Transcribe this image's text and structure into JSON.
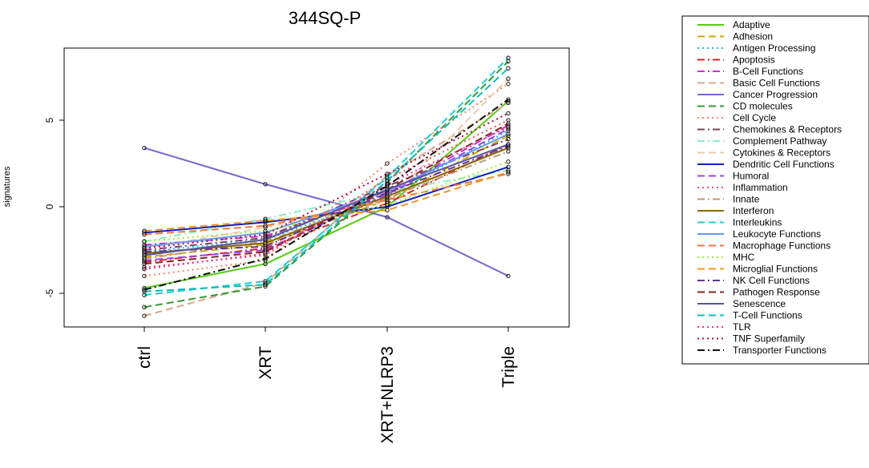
{
  "chart_data": {
    "type": "line",
    "title": "344SQ-P",
    "xlabel": "",
    "ylabel": "signatures",
    "categories": [
      "ctrl",
      "XRT",
      "XRT+NLRP3",
      "Triple"
    ],
    "yticks": [
      "5",
      "0",
      "-5"
    ],
    "ylim": [
      -6.9,
      9.1
    ],
    "grid": false,
    "legend_position": "right",
    "series": [
      {
        "name": "Adaptive",
        "color": "#55cc11",
        "dash": "solid",
        "values": [
          -4.7,
          -3.3,
          0.0,
          6.1
        ]
      },
      {
        "name": "Adhesion",
        "color": "#ccaa00",
        "dash": "dashed",
        "values": [
          -2.9,
          -2.2,
          0.4,
          4.1
        ]
      },
      {
        "name": "Antigen Processing",
        "color": "#22bbdd",
        "dash": "dotted",
        "values": [
          -2.6,
          -1.9,
          0.6,
          4.4
        ]
      },
      {
        "name": "Apoptosis",
        "color": "#dd2222",
        "dash": "dashdot",
        "values": [
          -3.2,
          -2.4,
          0.2,
          3.6
        ]
      },
      {
        "name": "B-Cell Functions",
        "color": "#cc33cc",
        "dash": "dashdot",
        "values": [
          -2.2,
          -1.7,
          0.8,
          4.7
        ]
      },
      {
        "name": "Basic Cell Functions",
        "color": "#d4a98c",
        "dash": "dashed",
        "values": [
          -6.3,
          -4.4,
          1.8,
          6.0
        ]
      },
      {
        "name": "Cancer Progression",
        "color": "#7766cc",
        "dash": "solid",
        "values": [
          3.4,
          1.3,
          -0.6,
          -4.0
        ]
      },
      {
        "name": "CD molecules",
        "color": "#339933",
        "dash": "dashed",
        "values": [
          -5.8,
          -4.6,
          1.4,
          8.4
        ]
      },
      {
        "name": "Cell Cycle",
        "color": "#ee8866",
        "dash": "dotted",
        "values": [
          -4.0,
          -3.1,
          2.5,
          7.1
        ]
      },
      {
        "name": "Chemokines & Receptors",
        "color": "#774466",
        "dash": "dashdot",
        "values": [
          -2.5,
          -1.8,
          1.2,
          3.9
        ]
      },
      {
        "name": "Complement Pathway",
        "color": "#88eebb",
        "dash": "dashdot",
        "values": [
          -2.0,
          -0.7,
          0.9,
          2.1
        ]
      },
      {
        "name": "Cytokines & Receptors",
        "color": "#eeccaa",
        "dash": "dashed",
        "values": [
          -2.4,
          -1.2,
          0.3,
          7.4
        ]
      },
      {
        "name": "Dendritic Cell Functions",
        "color": "#1122bb",
        "dash": "solid",
        "values": [
          -1.5,
          -0.9,
          0.0,
          2.3
        ]
      },
      {
        "name": "Humoral",
        "color": "#9944ee",
        "dash": "dashed",
        "values": [
          -3.1,
          -2.5,
          0.7,
          4.5
        ]
      },
      {
        "name": "Inflammation",
        "color": "#ee5566",
        "dash": "dotted",
        "values": [
          -3.5,
          -2.8,
          1.6,
          5.0
        ]
      },
      {
        "name": "Innate",
        "color": "#bb9977",
        "dash": "dashdot",
        "values": [
          -3.0,
          -2.0,
          0.5,
          3.2
        ]
      },
      {
        "name": "Interferon",
        "color": "#886600",
        "dash": "solid",
        "values": [
          -2.7,
          -2.1,
          0.6,
          3.4
        ]
      },
      {
        "name": "Interleukins",
        "color": "#22cccc",
        "dash": "dashed",
        "values": [
          -5.1,
          -4.3,
          1.7,
          8.6
        ]
      },
      {
        "name": "Leukocyte Functions",
        "color": "#6699ee",
        "dash": "solid",
        "values": [
          -2.3,
          -1.5,
          0.9,
          4.2
        ]
      },
      {
        "name": "Macrophage Functions",
        "color": "#ee7744",
        "dash": "dashed",
        "values": [
          -1.6,
          -1.1,
          0.4,
          1.9
        ]
      },
      {
        "name": "MHC",
        "color": "#99ee33",
        "dash": "dotted",
        "values": [
          -2.0,
          -1.4,
          0.1,
          2.6
        ]
      },
      {
        "name": "Microglial Functions",
        "color": "#ee9922",
        "dash": "dashed",
        "values": [
          -1.4,
          -0.8,
          -0.2,
          2.0
        ]
      },
      {
        "name": "NK Cell Functions",
        "color": "#663399",
        "dash": "dashdot",
        "values": [
          -2.6,
          -2.3,
          0.8,
          3.5
        ]
      },
      {
        "name": "Pathogen Response",
        "color": "#882222",
        "dash": "dashed",
        "values": [
          -3.3,
          -2.6,
          1.0,
          4.8
        ]
      },
      {
        "name": "Senescence",
        "color": "#555599",
        "dash": "solid",
        "values": [
          -2.8,
          -1.9,
          1.0,
          3.6
        ]
      },
      {
        "name": "T-Cell Functions",
        "color": "#11bbbb",
        "dash": "dashed",
        "values": [
          -4.9,
          -4.5,
          1.5,
          8.0
        ]
      },
      {
        "name": "TLR",
        "color": "#ee3399",
        "dash": "dotted",
        "values": [
          -3.6,
          -2.7,
          1.3,
          4.6
        ]
      },
      {
        "name": "TNF Superfamily",
        "color": "#aa1144",
        "dash": "dotted",
        "values": [
          -2.4,
          -1.6,
          1.9,
          5.4
        ]
      },
      {
        "name": "Transporter Functions",
        "color": "#111111",
        "dash": "dashdot",
        "values": [
          -4.8,
          -3.0,
          1.2,
          6.2
        ]
      }
    ]
  }
}
